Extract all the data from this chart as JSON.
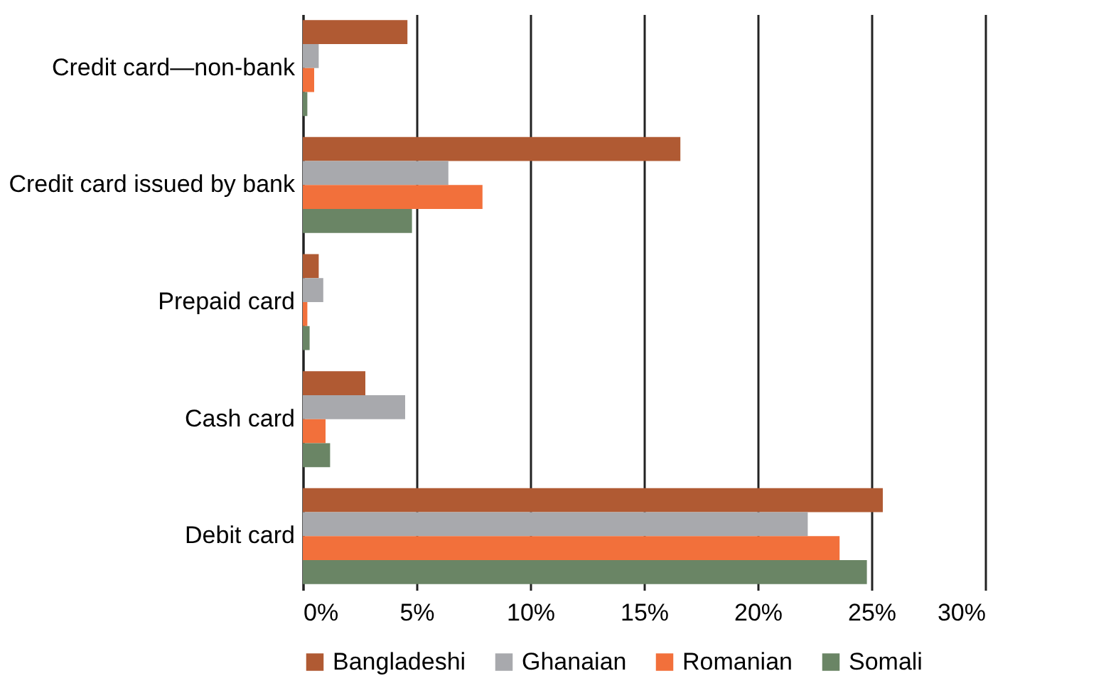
{
  "chart_data": {
    "type": "bar",
    "orientation": "horizontal",
    "categories": [
      "Credit card—non-bank",
      "Credit card issued by bank",
      "Prepaid card",
      "Cash card",
      "Debit card"
    ],
    "series": [
      {
        "name": "Bangladeshi",
        "color": "#b05a33",
        "values": [
          4.6,
          16.6,
          0.7,
          2.75,
          25.5
        ]
      },
      {
        "name": "Ghanaian",
        "color": "#a8a9ad",
        "values": [
          0.7,
          6.4,
          0.9,
          4.5,
          22.2
        ]
      },
      {
        "name": "Romanian",
        "color": "#f2703b",
        "values": [
          0.5,
          7.9,
          0.2,
          1.0,
          23.6
        ]
      },
      {
        "name": "Somali",
        "color": "#6a8565",
        "values": [
          0.2,
          4.8,
          0.3,
          1.2,
          24.8
        ]
      }
    ],
    "xlim": [
      0,
      30
    ],
    "xticks": [
      {
        "value": 0,
        "label": "0%"
      },
      {
        "value": 5,
        "label": "5%"
      },
      {
        "value": 10,
        "label": "10%"
      },
      {
        "value": 15,
        "label": "15%"
      },
      {
        "value": 20,
        "label": "20%"
      },
      {
        "value": 25,
        "label": "25%"
      },
      {
        "value": 30,
        "label": "30%"
      }
    ],
    "grid": "x",
    "legend": "bottom"
  }
}
